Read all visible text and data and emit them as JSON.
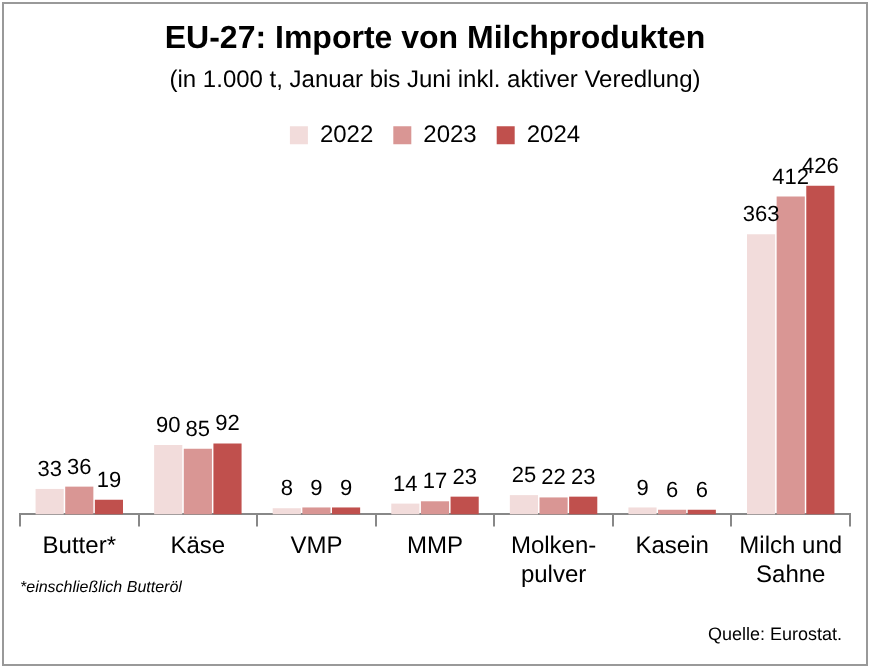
{
  "chart_data": {
    "type": "bar",
    "title": "EU-27: Importe von Milchprodukten",
    "subtitle": "(in 1.000 t, Januar bis Juni inkl. aktiver Veredlung)",
    "categories": [
      "Butter*",
      "Käse",
      "VMP",
      "MMP",
      "Molken-pulver",
      "Kasein",
      "Milch und Sahne"
    ],
    "series": [
      {
        "name": "2022",
        "color": "#f2dcdb",
        "values": [
          33,
          90,
          8,
          14,
          25,
          9,
          363
        ]
      },
      {
        "name": "2023",
        "color": "#d99694",
        "values": [
          36,
          85,
          9,
          17,
          22,
          6,
          412
        ]
      },
      {
        "name": "2024",
        "color": "#c0504d",
        "values": [
          19,
          92,
          9,
          23,
          23,
          6,
          426
        ]
      }
    ],
    "data_labels": true,
    "legend": "top",
    "grid": false,
    "annotations": [
      "*einschließlich Butteröl",
      "Quelle: Eurostat."
    ]
  }
}
